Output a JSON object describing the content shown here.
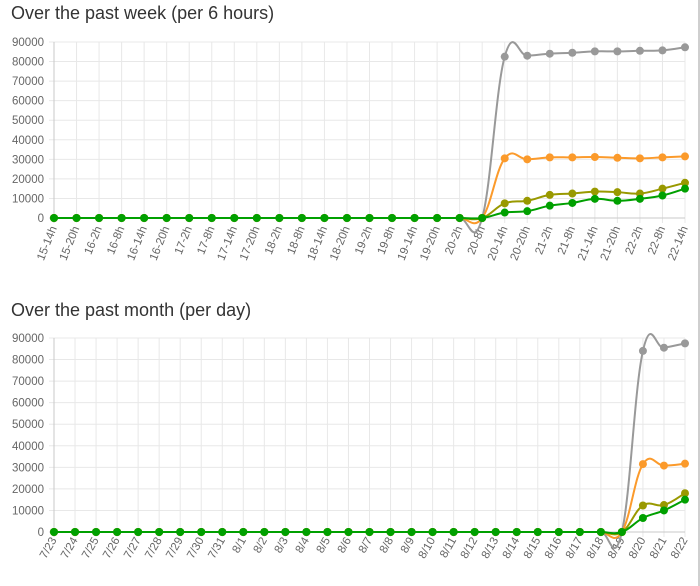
{
  "colors": {
    "grid": "#e8e8e8",
    "axis": "#c9c9c9",
    "series": [
      "#999999",
      "#fb9a2b",
      "#999900",
      "#00a000"
    ],
    "series_icons": [
      "gray-line",
      "orange-line",
      "olive-line",
      "green-line"
    ]
  },
  "chart_data": [
    {
      "type": "line",
      "title": "Over the past week (per 6 hours)",
      "xlabel": "",
      "ylabel": "",
      "ylim": [
        0,
        90000
      ],
      "yticks": [
        0,
        10000,
        20000,
        30000,
        40000,
        50000,
        60000,
        70000,
        80000,
        90000
      ],
      "yticklabels": [
        "0",
        "10000",
        "20000",
        "30000",
        "40000",
        "50000",
        "60000",
        "70000",
        "80000",
        "90000"
      ],
      "grid": true,
      "legend": "none",
      "categories": [
        "15-14h",
        "15-20h",
        "16-2h",
        "16-8h",
        "16-14h",
        "16-20h",
        "17-2h",
        "17-8h",
        "17-14h",
        "17-20h",
        "18-2h",
        "18-8h",
        "18-14h",
        "18-20h",
        "19-2h",
        "19-8h",
        "19-14h",
        "19-20h",
        "20-2h",
        "20-8h",
        "20-14h",
        "20-20h",
        "21-2h",
        "21-8h",
        "21-14h",
        "21-20h",
        "22-2h",
        "22-8h",
        "22-14h"
      ],
      "series": [
        {
          "values": [
            0,
            0,
            0,
            0,
            0,
            0,
            0,
            0,
            0,
            0,
            0,
            0,
            0,
            0,
            0,
            0,
            0,
            0,
            0,
            0,
            82500,
            83000,
            84000,
            84500,
            85200,
            85200,
            85500,
            85700,
            87300
          ]
        },
        {
          "values": [
            0,
            0,
            0,
            0,
            0,
            0,
            0,
            0,
            0,
            0,
            0,
            0,
            0,
            0,
            0,
            0,
            0,
            0,
            0,
            0,
            30500,
            30000,
            31000,
            31000,
            31200,
            30800,
            30500,
            31000,
            31500
          ]
        },
        {
          "values": [
            0,
            0,
            0,
            0,
            0,
            0,
            0,
            0,
            0,
            0,
            0,
            0,
            0,
            0,
            0,
            0,
            0,
            0,
            0,
            0,
            7500,
            8800,
            11800,
            12500,
            13500,
            13200,
            12500,
            15000,
            18000
          ]
        },
        {
          "values": [
            0,
            0,
            0,
            0,
            0,
            0,
            0,
            0,
            0,
            0,
            0,
            0,
            0,
            0,
            0,
            0,
            0,
            0,
            0,
            0,
            2800,
            3500,
            6300,
            7700,
            9800,
            8800,
            9800,
            11500,
            15000
          ]
        }
      ]
    },
    {
      "type": "line",
      "title": "Over the past month (per day)",
      "xlabel": "",
      "ylabel": "",
      "ylim": [
        0,
        90000
      ],
      "yticks": [
        0,
        10000,
        20000,
        30000,
        40000,
        50000,
        60000,
        70000,
        80000,
        90000
      ],
      "yticklabels": [
        "0",
        "10000",
        "20000",
        "30000",
        "40000",
        "50000",
        "60000",
        "70000",
        "80000",
        "90000"
      ],
      "grid": true,
      "legend": "none",
      "categories": [
        "7/23",
        "7/24",
        "7/25",
        "7/26",
        "7/27",
        "7/28",
        "7/29",
        "7/30",
        "7/31",
        "8/1",
        "8/2",
        "8/3",
        "8/4",
        "8/5",
        "8/6",
        "8/7",
        "8/8",
        "8/9",
        "8/10",
        "8/11",
        "8/12",
        "8/13",
        "8/14",
        "8/15",
        "8/16",
        "8/17",
        "8/18",
        "8/19",
        "8/20",
        "8/21",
        "8/22"
      ],
      "series": [
        {
          "values": [
            0,
            0,
            0,
            0,
            0,
            0,
            0,
            0,
            0,
            0,
            0,
            0,
            0,
            0,
            0,
            0,
            0,
            0,
            0,
            0,
            0,
            0,
            0,
            0,
            0,
            0,
            0,
            0,
            84000,
            85500,
            87500
          ]
        },
        {
          "values": [
            0,
            0,
            0,
            0,
            0,
            0,
            0,
            0,
            0,
            0,
            0,
            0,
            0,
            0,
            0,
            0,
            0,
            0,
            0,
            0,
            0,
            0,
            0,
            0,
            0,
            0,
            0,
            0,
            31500,
            30800,
            31700
          ]
        },
        {
          "values": [
            0,
            0,
            0,
            0,
            0,
            0,
            0,
            0,
            0,
            0,
            0,
            0,
            0,
            0,
            0,
            0,
            0,
            0,
            0,
            0,
            0,
            0,
            0,
            0,
            0,
            0,
            0,
            0,
            12300,
            12500,
            18000
          ]
        },
        {
          "values": [
            0,
            0,
            0,
            0,
            0,
            0,
            0,
            0,
            0,
            0,
            0,
            0,
            0,
            0,
            0,
            0,
            0,
            0,
            0,
            0,
            0,
            0,
            0,
            0,
            0,
            0,
            0,
            0,
            6500,
            10000,
            15000
          ]
        }
      ]
    }
  ]
}
